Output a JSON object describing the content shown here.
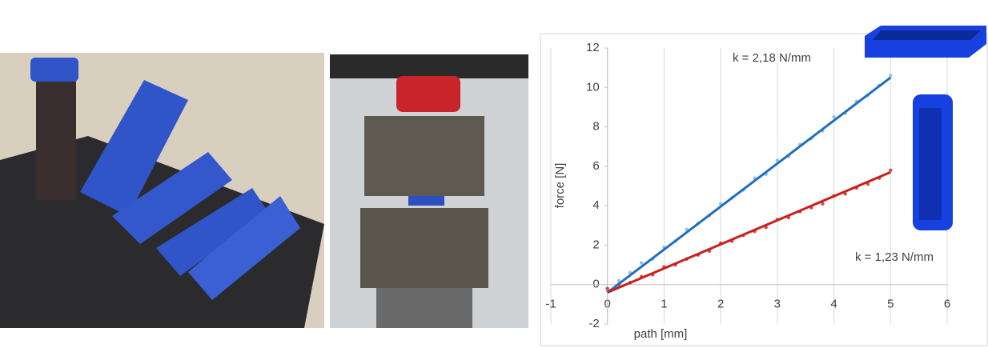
{
  "chart_data": {
    "type": "scatter",
    "xlabel": "path [mm]",
    "ylabel": "force [N]",
    "annotations": [
      "k = 2,18 N/mm",
      "k = 1,23 N/mm"
    ],
    "xlim": [
      -1,
      6
    ],
    "ylim": [
      -2,
      12
    ],
    "xticks": [
      -1,
      0,
      1,
      2,
      3,
      4,
      5,
      6
    ],
    "yticks": [
      -2,
      0,
      2,
      4,
      6,
      8,
      10,
      12
    ],
    "grid": true,
    "series": [
      {
        "color": "#8ec3f0",
        "style": "points",
        "x": [
          0,
          0.2,
          0.4,
          0.6,
          0.8,
          1,
          1.2,
          1.4,
          1.6,
          1.8,
          2,
          2.2,
          2.4,
          2.6,
          2.8,
          3,
          3.2,
          3.4,
          3.6,
          3.8,
          4,
          4.2,
          4.4,
          4.6,
          4.8,
          5
        ],
        "values": [
          -0.3,
          0.2,
          0.6,
          1.1,
          1.3,
          1.9,
          2.2,
          2.8,
          3.1,
          3.5,
          4.1,
          4.4,
          4.8,
          5.4,
          5.6,
          6.3,
          6.5,
          7.1,
          7.4,
          7.8,
          8.5,
          8.7,
          9.3,
          9.6,
          10.1,
          10.6
        ]
      },
      {
        "color": "#e5473f",
        "style": "points",
        "x": [
          0,
          0.2,
          0.4,
          0.6,
          0.8,
          1,
          1.2,
          1.4,
          1.6,
          1.8,
          2,
          2.2,
          2.4,
          2.6,
          2.8,
          3,
          3.2,
          3.4,
          3.6,
          3.8,
          4,
          4.2,
          4.4,
          4.6,
          4.8,
          5
        ],
        "values": [
          -0.2,
          0,
          0.1,
          0.4,
          0.5,
          0.9,
          1,
          1.3,
          1.5,
          1.7,
          2.1,
          2.2,
          2.5,
          2.7,
          2.9,
          3.3,
          3.4,
          3.7,
          3.9,
          4.1,
          4.5,
          4.6,
          4.9,
          5.1,
          5.4,
          5.8
        ]
      },
      {
        "color": "#1f6fbd",
        "style": "line",
        "x": [
          0,
          5
        ],
        "values": [
          -0.4,
          10.5
        ]
      },
      {
        "color": "#c8201c",
        "style": "line",
        "x": [
          0,
          5
        ],
        "values": [
          -0.4,
          5.7
        ]
      }
    ]
  }
}
